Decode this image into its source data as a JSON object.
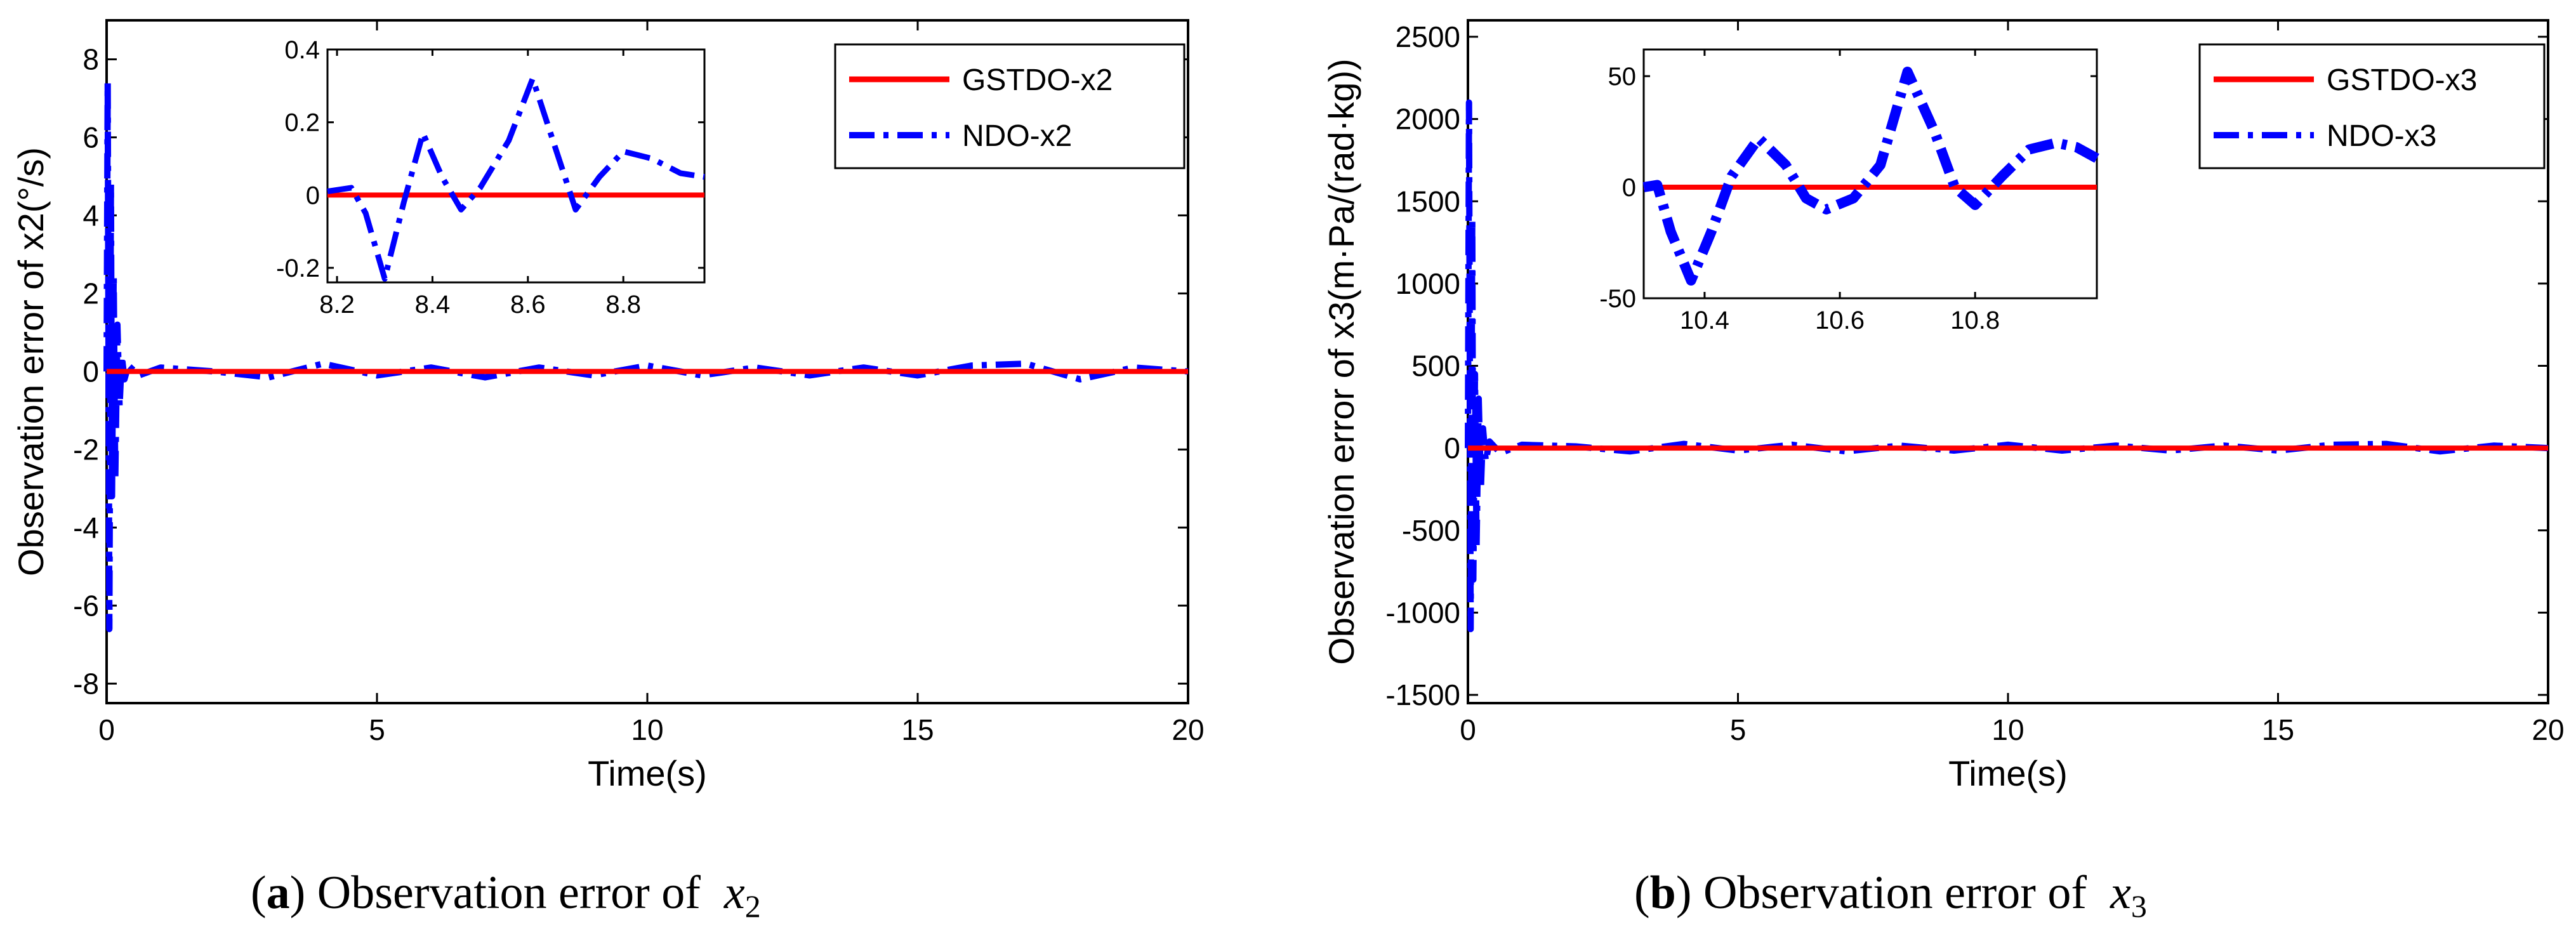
{
  "chart_data": [
    {
      "type": "line",
      "panel": "a",
      "xlabel": "Time(s)",
      "ylabel": "Observation error of x2(°/s)",
      "xlim": [
        0,
        20
      ],
      "ylim": [
        -8.5,
        9
      ],
      "xticks": [
        0,
        5,
        10,
        15,
        20
      ],
      "yticks": [
        -8,
        -6,
        -4,
        -2,
        0,
        2,
        4,
        6,
        8
      ],
      "legend": {
        "placement": "top-right",
        "entries": [
          "GSTDO-x2",
          "NDO-x2"
        ]
      },
      "series": [
        {
          "name": "GSTDO-x2",
          "color": "#ff0000",
          "style": "solid",
          "x": [
            0,
            20
          ],
          "y": [
            0,
            0
          ]
        },
        {
          "name": "NDO-x2",
          "color": "#0000ff",
          "style": "dashdot",
          "x": [
            0,
            0.02,
            0.05,
            0.08,
            0.1,
            0.13,
            0.16,
            0.2,
            0.24,
            0.28,
            0.33,
            0.4,
            0.6,
            1,
            2,
            3,
            4,
            5,
            6,
            7,
            8,
            9,
            10,
            11,
            12,
            13,
            14,
            15,
            16,
            17,
            18,
            19,
            20
          ],
          "y": [
            0,
            7.4,
            -6.6,
            4.8,
            -3.2,
            2.5,
            -2.8,
            1.2,
            -0.9,
            0.4,
            -0.2,
            0.15,
            -0.1,
            0.1,
            0,
            -0.15,
            0.2,
            -0.1,
            0.1,
            -0.15,
            0.1,
            -0.1,
            0.15,
            -0.1,
            0.1,
            -0.1,
            0.1,
            -0.1,
            0.15,
            0.2,
            -0.2,
            0.1,
            0
          ]
        }
      ],
      "inset": {
        "xlim": [
          8.18,
          8.97
        ],
        "ylim": [
          -0.24,
          0.4
        ],
        "xticks": [
          8.2,
          8.4,
          8.6,
          8.8
        ],
        "yticks": [
          -0.2,
          0,
          0.2,
          0.4
        ],
        "series": [
          {
            "name": "GSTDO-x2",
            "color": "#ff0000",
            "style": "solid",
            "x": [
              8.18,
              8.97
            ],
            "y": [
              0,
              0
            ]
          },
          {
            "name": "NDO-x2",
            "color": "#0000ff",
            "style": "dashdot",
            "x": [
              8.18,
              8.23,
              8.26,
              8.3,
              8.34,
              8.38,
              8.42,
              8.46,
              8.5,
              8.56,
              8.61,
              8.66,
              8.7,
              8.75,
              8.8,
              8.86,
              8.92,
              8.97
            ],
            "y": [
              0.01,
              0.02,
              -0.05,
              -0.23,
              -0.02,
              0.17,
              0.05,
              -0.04,
              0.02,
              0.15,
              0.32,
              0.12,
              -0.04,
              0.05,
              0.12,
              0.1,
              0.06,
              0.05
            ]
          }
        ]
      }
    },
    {
      "type": "line",
      "panel": "b",
      "xlabel": "Time(s)",
      "ylabel": "Observation error of x3(m·Pa/(rad·kg))",
      "xlim": [
        0,
        20
      ],
      "ylim": [
        -1550,
        2600
      ],
      "xticks": [
        0,
        5,
        10,
        15,
        20
      ],
      "yticks": [
        -1500,
        -1000,
        -500,
        0,
        500,
        1000,
        1500,
        2000,
        2500
      ],
      "legend": {
        "placement": "top-right",
        "entries": [
          "GSTDO-x3",
          "NDO-x3"
        ]
      },
      "series": [
        {
          "name": "GSTDO-x3",
          "color": "#ff0000",
          "style": "solid",
          "x": [
            0,
            20
          ],
          "y": [
            0,
            0
          ]
        },
        {
          "name": "NDO-x3",
          "color": "#0000ff",
          "style": "dashdot",
          "x": [
            0,
            0.02,
            0.05,
            0.08,
            0.1,
            0.13,
            0.16,
            0.2,
            0.24,
            0.28,
            0.33,
            0.4,
            0.6,
            1,
            2,
            3,
            4,
            5,
            6,
            7,
            8,
            9,
            10,
            11,
            12,
            13,
            14,
            15,
            16,
            17,
            18,
            19,
            20
          ],
          "y": [
            0,
            2100,
            -1100,
            1400,
            -800,
            450,
            -600,
            300,
            -250,
            120,
            -80,
            40,
            -30,
            20,
            10,
            -20,
            25,
            -15,
            20,
            -20,
            15,
            -15,
            20,
            -15,
            15,
            -15,
            15,
            -15,
            20,
            25,
            -20,
            15,
            0
          ]
        }
      ],
      "inset": {
        "xlim": [
          10.31,
          10.98
        ],
        "ylim": [
          -50,
          62
        ],
        "xticks": [
          10.4,
          10.6,
          10.8
        ],
        "yticks": [
          -50,
          0,
          50
        ],
        "series": [
          {
            "name": "GSTDO-x3",
            "color": "#ff0000",
            "style": "solid",
            "x": [
              10.31,
              10.98
            ],
            "y": [
              0,
              0
            ]
          },
          {
            "name": "NDO-x3",
            "color": "#0000ff",
            "style": "dashdot",
            "x": [
              10.31,
              10.33,
              10.35,
              10.38,
              10.41,
              10.44,
              10.48,
              10.52,
              10.55,
              10.58,
              10.62,
              10.66,
              10.7,
              10.74,
              10.77,
              10.8,
              10.84,
              10.88,
              10.92,
              10.95,
              10.98
            ],
            "y": [
              0,
              1,
              -20,
              -42,
              -20,
              5,
              22,
              10,
              -5,
              -10,
              -5,
              10,
              52,
              25,
              0,
              -8,
              5,
              17,
              20,
              18,
              13
            ]
          }
        ]
      }
    }
  ],
  "captions": {
    "a": {
      "letter": "a",
      "text": ") Observation error of",
      "var": "x",
      "sub": "2"
    },
    "b": {
      "letter": "b",
      "text": ") Observation error of",
      "var": "x",
      "sub": "3"
    }
  }
}
